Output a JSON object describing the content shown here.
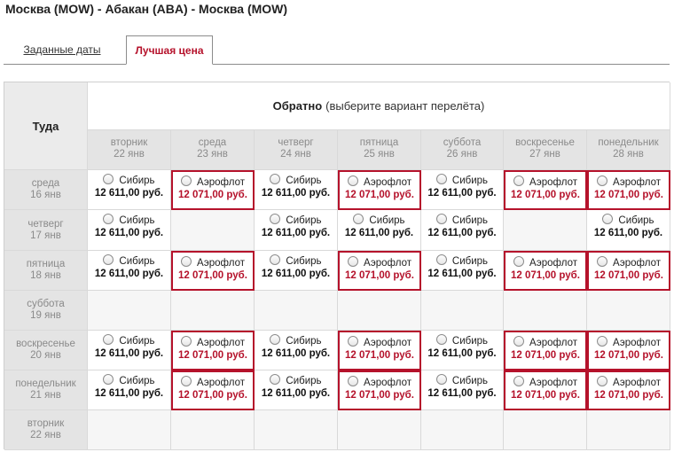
{
  "route_title": "Москва (MOW) - Абакан (ABA) - Москва (MOW)",
  "tabs": [
    {
      "label": "Заданные даты",
      "active": false
    },
    {
      "label": "Лучшая цена",
      "active": true
    }
  ],
  "colors": {
    "accent": "#b5122b",
    "header_bg": "#e4e4e4",
    "border": "#d9d9d9"
  },
  "table": {
    "corner_label": "Туда",
    "return_header_bold": "Обратно",
    "return_header_rest": "(выберите вариант перелёта)",
    "return_days": [
      {
        "weekday": "вторник",
        "date": "22 янв"
      },
      {
        "weekday": "среда",
        "date": "23 янв"
      },
      {
        "weekday": "четверг",
        "date": "24 янв"
      },
      {
        "weekday": "пятница",
        "date": "25 янв"
      },
      {
        "weekday": "суббота",
        "date": "26 янв"
      },
      {
        "weekday": "воскресенье",
        "date": "27 янв"
      },
      {
        "weekday": "понедельник",
        "date": "28 янв"
      }
    ],
    "rows": [
      {
        "weekday": "среда",
        "date": "16 янв",
        "cells": [
          {
            "airline": "Сибирь",
            "price": "12 611,00 руб.",
            "best": false
          },
          {
            "airline": "Аэрофлот",
            "price": "12 071,00 руб.",
            "best": true
          },
          {
            "airline": "Сибирь",
            "price": "12 611,00 руб.",
            "best": false
          },
          {
            "airline": "Аэрофлот",
            "price": "12 071,00 руб.",
            "best": true
          },
          {
            "airline": "Сибирь",
            "price": "12 611,00 руб.",
            "best": false
          },
          {
            "airline": "Аэрофлот",
            "price": "12 071,00 руб.",
            "best": true
          },
          {
            "airline": "Аэрофлот",
            "price": "12 071,00 руб.",
            "best": true
          }
        ]
      },
      {
        "weekday": "четверг",
        "date": "17 янв",
        "cells": [
          {
            "airline": "Сибирь",
            "price": "12 611,00 руб.",
            "best": false
          },
          null,
          {
            "airline": "Сибирь",
            "price": "12 611,00 руб.",
            "best": false
          },
          {
            "airline": "Сибирь",
            "price": "12 611,00 руб.",
            "best": false
          },
          {
            "airline": "Сибирь",
            "price": "12 611,00 руб.",
            "best": false
          },
          null,
          {
            "airline": "Сибирь",
            "price": "12 611,00 руб.",
            "best": false
          }
        ]
      },
      {
        "weekday": "пятница",
        "date": "18 янв",
        "cells": [
          {
            "airline": "Сибирь",
            "price": "12 611,00 руб.",
            "best": false
          },
          {
            "airline": "Аэрофлот",
            "price": "12 071,00 руб.",
            "best": true
          },
          {
            "airline": "Сибирь",
            "price": "12 611,00 руб.",
            "best": false
          },
          {
            "airline": "Аэрофлот",
            "price": "12 071,00 руб.",
            "best": true
          },
          {
            "airline": "Сибирь",
            "price": "12 611,00 руб.",
            "best": false
          },
          {
            "airline": "Аэрофлот",
            "price": "12 071,00 руб.",
            "best": true
          },
          {
            "airline": "Аэрофлот",
            "price": "12 071,00 руб.",
            "best": true
          }
        ]
      },
      {
        "weekday": "суббота",
        "date": "19 янв",
        "cells": [
          null,
          null,
          null,
          null,
          null,
          null,
          null
        ]
      },
      {
        "weekday": "воскресенье",
        "date": "20 янв",
        "cells": [
          {
            "airline": "Сибирь",
            "price": "12 611,00 руб.",
            "best": false
          },
          {
            "airline": "Аэрофлот",
            "price": "12 071,00 руб.",
            "best": true
          },
          {
            "airline": "Сибирь",
            "price": "12 611,00 руб.",
            "best": false
          },
          {
            "airline": "Аэрофлот",
            "price": "12 071,00 руб.",
            "best": true
          },
          {
            "airline": "Сибирь",
            "price": "12 611,00 руб.",
            "best": false
          },
          {
            "airline": "Аэрофлот",
            "price": "12 071,00 руб.",
            "best": true
          },
          {
            "airline": "Аэрофлот",
            "price": "12 071,00 руб.",
            "best": true
          }
        ]
      },
      {
        "weekday": "понедельник",
        "date": "21 янв",
        "cells": [
          {
            "airline": "Сибирь",
            "price": "12 611,00 руб.",
            "best": false
          },
          {
            "airline": "Аэрофлот",
            "price": "12 071,00 руб.",
            "best": true
          },
          {
            "airline": "Сибирь",
            "price": "12 611,00 руб.",
            "best": false
          },
          {
            "airline": "Аэрофлот",
            "price": "12 071,00 руб.",
            "best": true
          },
          {
            "airline": "Сибирь",
            "price": "12 611,00 руб.",
            "best": false
          },
          {
            "airline": "Аэрофлот",
            "price": "12 071,00 руб.",
            "best": true
          },
          {
            "airline": "Аэрофлот",
            "price": "12 071,00 руб.",
            "best": true
          }
        ]
      },
      {
        "weekday": "вторник",
        "date": "22 янв",
        "cells": [
          null,
          null,
          null,
          null,
          null,
          null,
          null
        ]
      }
    ]
  }
}
